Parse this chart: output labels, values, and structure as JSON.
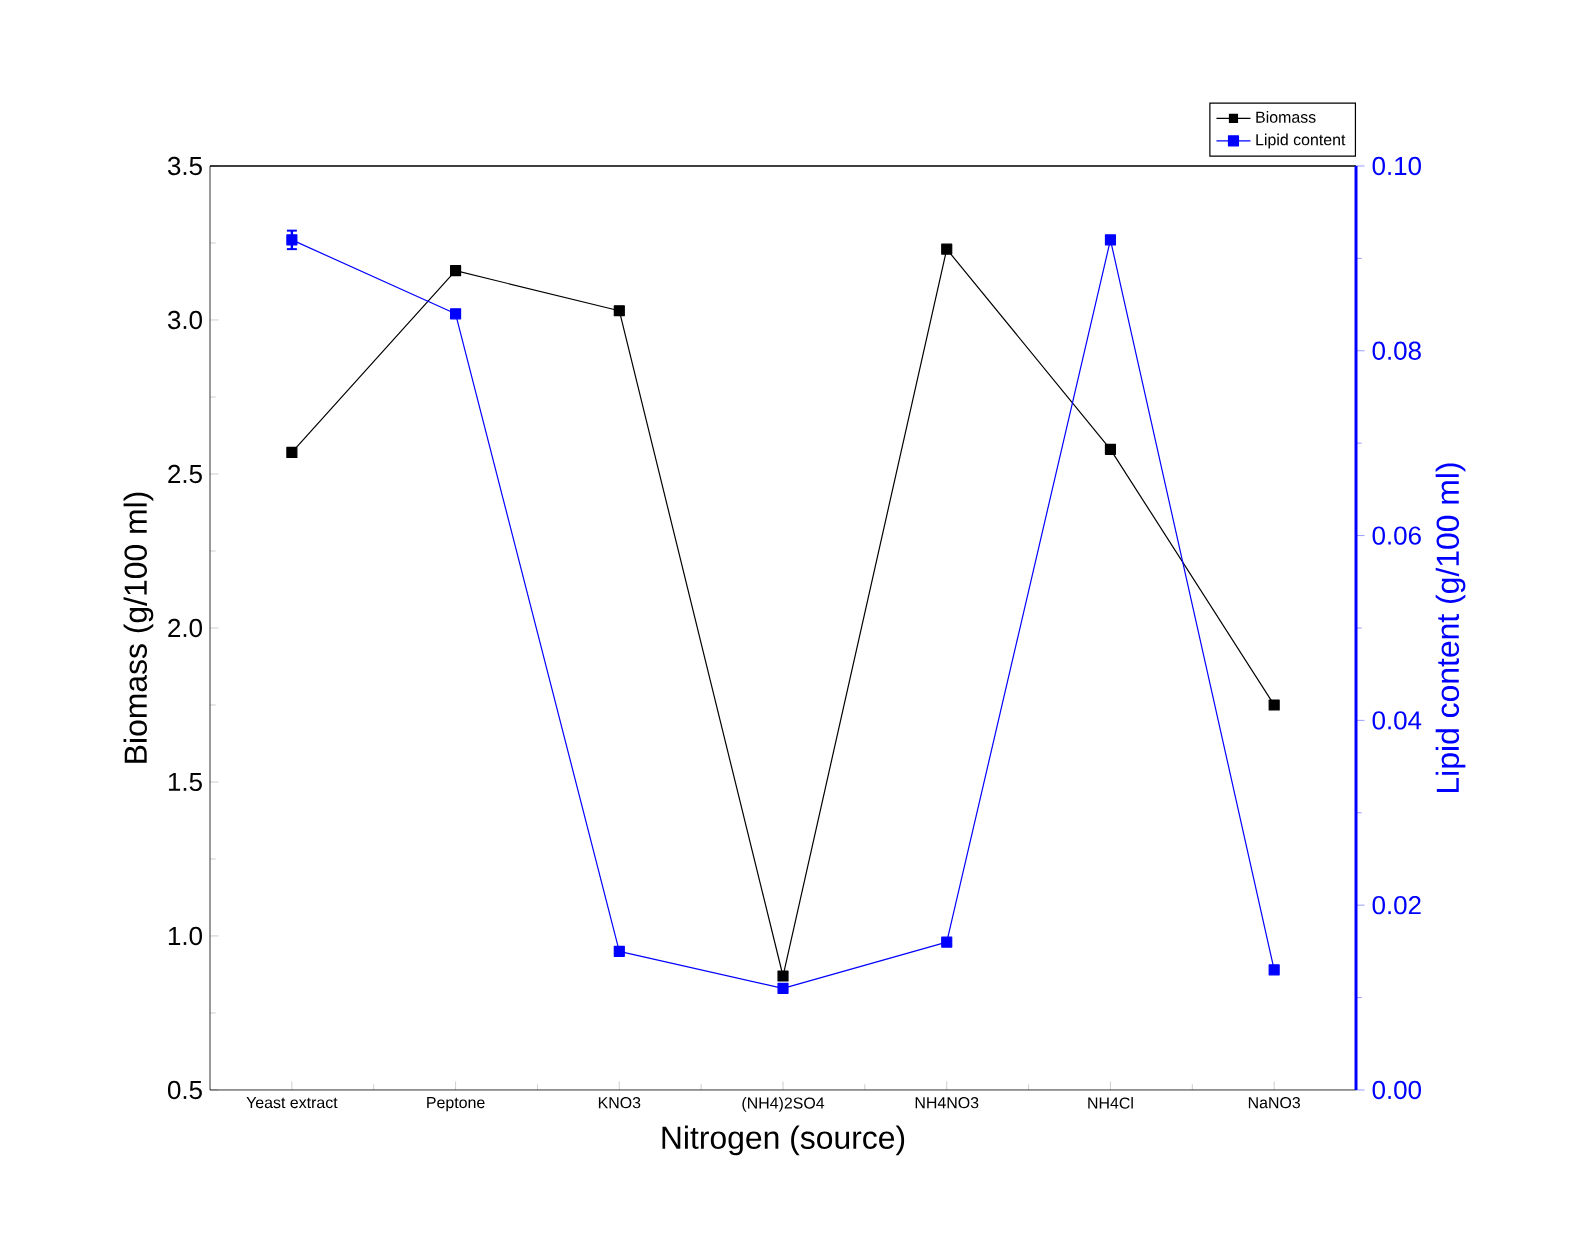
{
  "chart_data": {
    "type": "line",
    "xlabel": "Nitrogen (source)",
    "ylabel": "Biomass (g/100 ml)",
    "y2label": "Lipid content (g/100 ml)",
    "categories": [
      "Yeast extract",
      "Peptone",
      "KNO3",
      "(NH4)2SO4",
      "NH4NO3",
      "NH4Cl",
      "NaNO3"
    ],
    "series": [
      {
        "name": "Biomass",
        "color": "#000000",
        "values": [
          2.57,
          3.16,
          3.03,
          0.87,
          3.23,
          2.58,
          1.75
        ]
      },
      {
        "name": "Lipid content",
        "color": "#0000ff",
        "axis": "y2",
        "values": [
          0.092,
          0.084,
          0.015,
          0.011,
          0.016,
          0.092,
          0.013
        ],
        "errors": [
          0.001,
          null,
          null,
          null,
          null,
          null,
          null
        ]
      }
    ],
    "ylim": [
      0.5,
      3.5
    ],
    "yticks": [
      0.5,
      {
        "value": 1,
        "label": "1.0"
      },
      1.5,
      {
        "value": 2,
        "label": "2.0"
      },
      2.5,
      {
        "value": 3,
        "label": "3.0"
      },
      3.5
    ],
    "y2lim": [
      0,
      0.1
    ],
    "y2ticks": [
      {
        "value": 0,
        "label": "0.00"
      },
      0.02,
      0.04,
      0.06,
      0.08,
      {
        "value": 0.1,
        "label": "0.10"
      }
    ],
    "marker": "square",
    "line_style": "solid",
    "grid": false,
    "legend": "top right"
  }
}
